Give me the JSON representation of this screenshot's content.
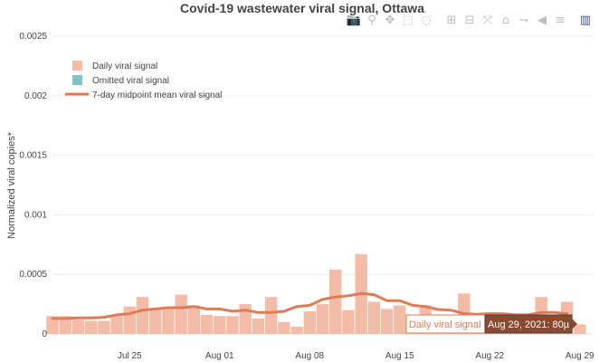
{
  "modebar": {
    "icons": [
      "camera-icon",
      "zoom-icon",
      "pan-icon",
      "box-select-icon",
      "lasso-icon",
      "zoom-in-icon",
      "zoom-out-icon",
      "autoscale-icon",
      "home-icon",
      "spike-lines-icon",
      "hover-closest-icon",
      "hover-compare-icon",
      "plotly-logo-icon"
    ],
    "glyphs": [
      "📷",
      "⚲",
      "✥",
      "⬚",
      "◌",
      "⊞",
      "⊟",
      "⤧",
      "⌂",
      "⇁",
      "◀",
      "≡",
      "▥"
    ]
  },
  "colors": {
    "bar": "#f4bba6",
    "omitted": "#7fc4c8",
    "line": "#e07b54",
    "grid": "#ebebeb",
    "hover_bg": "#8a4a30"
  },
  "hover": {
    "series_label": "Daily viral signal",
    "value_label": "Aug 29, 2021: 80µ"
  },
  "chart_data": {
    "type": "bar",
    "title": "Covid-19 wastewater viral signal, Ottawa",
    "ylabel": "Normalized viral copies*",
    "xlabel": "",
    "ylim": [
      0,
      0.0025
    ],
    "yticks": [
      "0",
      "0.0005",
      "0.001",
      "0.0015",
      "0.002",
      "0.0025"
    ],
    "ytick_values": [
      0,
      0.0005,
      0.001,
      0.0015,
      0.002,
      0.0025
    ],
    "xticks": [
      "Jul 25",
      "Aug 01",
      "Aug 08",
      "Aug 15",
      "Aug 22",
      "Aug 29"
    ],
    "xtick_dates": [
      "2021-07-25",
      "2021-08-01",
      "2021-08-08",
      "2021-08-15",
      "2021-08-22",
      "2021-08-29"
    ],
    "xlim": [
      "2021-07-19",
      "2021-08-30"
    ],
    "grid": true,
    "legend_position": "top-left",
    "series": [
      {
        "name": "Daily viral signal",
        "kind": "bar",
        "x": [
          "2021-07-19",
          "2021-07-20",
          "2021-07-21",
          "2021-07-22",
          "2021-07-23",
          "2021-07-24",
          "2021-07-25",
          "2021-07-26",
          "2021-07-27",
          "2021-07-28",
          "2021-07-29",
          "2021-07-30",
          "2021-07-31",
          "2021-08-01",
          "2021-08-02",
          "2021-08-03",
          "2021-08-04",
          "2021-08-05",
          "2021-08-06",
          "2021-08-07",
          "2021-08-08",
          "2021-08-09",
          "2021-08-10",
          "2021-08-11",
          "2021-08-12",
          "2021-08-13",
          "2021-08-14",
          "2021-08-15",
          "2021-08-16",
          "2021-08-17",
          "2021-08-18",
          "2021-08-19",
          "2021-08-20",
          "2021-08-21",
          "2021-08-22",
          "2021-08-23",
          "2021-08-24",
          "2021-08-25",
          "2021-08-26",
          "2021-08-27",
          "2021-08-28",
          "2021-08-29"
        ],
        "values": [
          0.00015,
          0.00015,
          0.00012,
          0.00011,
          0.00011,
          0.00015,
          0.00023,
          0.00031,
          0.00021,
          0.00023,
          0.00033,
          0.00024,
          0.00016,
          0.00015,
          0.00015,
          0.00025,
          0.00013,
          0.00031,
          0.0001,
          6e-05,
          0.00019,
          0.00025,
          0.00054,
          0.0002,
          0.00067,
          0.00027,
          0.00021,
          0.00024,
          0.00016,
          0.00024,
          0.00011,
          0.0001,
          0.00034,
          0.00013,
          5e-05,
          0.00013,
          4e-05,
          0.0001,
          0.00031,
          0.00015,
          0.00027,
          8e-05
        ]
      },
      {
        "name": "Omitted viral signal",
        "kind": "bar",
        "x": [],
        "values": []
      },
      {
        "name": "7-day midpoint mean viral signal",
        "kind": "line",
        "x": [
          "2021-07-19",
          "2021-07-20",
          "2021-07-21",
          "2021-07-22",
          "2021-07-23",
          "2021-07-24",
          "2021-07-25",
          "2021-07-26",
          "2021-07-27",
          "2021-07-28",
          "2021-07-29",
          "2021-07-30",
          "2021-07-31",
          "2021-08-01",
          "2021-08-02",
          "2021-08-03",
          "2021-08-04",
          "2021-08-05",
          "2021-08-06",
          "2021-08-07",
          "2021-08-08",
          "2021-08-09",
          "2021-08-10",
          "2021-08-11",
          "2021-08-12",
          "2021-08-13",
          "2021-08-14",
          "2021-08-15",
          "2021-08-16",
          "2021-08-17",
          "2021-08-18",
          "2021-08-19",
          "2021-08-20",
          "2021-08-21",
          "2021-08-22",
          "2021-08-23",
          "2021-08-24",
          "2021-08-25",
          "2021-08-26",
          "2021-08-27",
          "2021-08-28"
        ],
        "values": [
          0.00013,
          0.00013,
          0.000135,
          0.000135,
          0.00014,
          0.00016,
          0.00017,
          0.0002,
          0.00021,
          0.00022,
          0.00022,
          0.00023,
          0.00021,
          0.00021,
          0.00019,
          0.0002,
          0.00018,
          0.00018,
          0.00019,
          0.00023,
          0.00024,
          0.00029,
          0.00031,
          0.00032,
          0.00034,
          0.00033,
          0.00028,
          0.00028,
          0.00024,
          0.00023,
          0.000205,
          0.0002,
          0.00017,
          0.000165,
          0.00017,
          0.00017,
          0.00016,
          0.00016,
          0.00018,
          0.00018,
          0.00017
        ]
      }
    ]
  }
}
